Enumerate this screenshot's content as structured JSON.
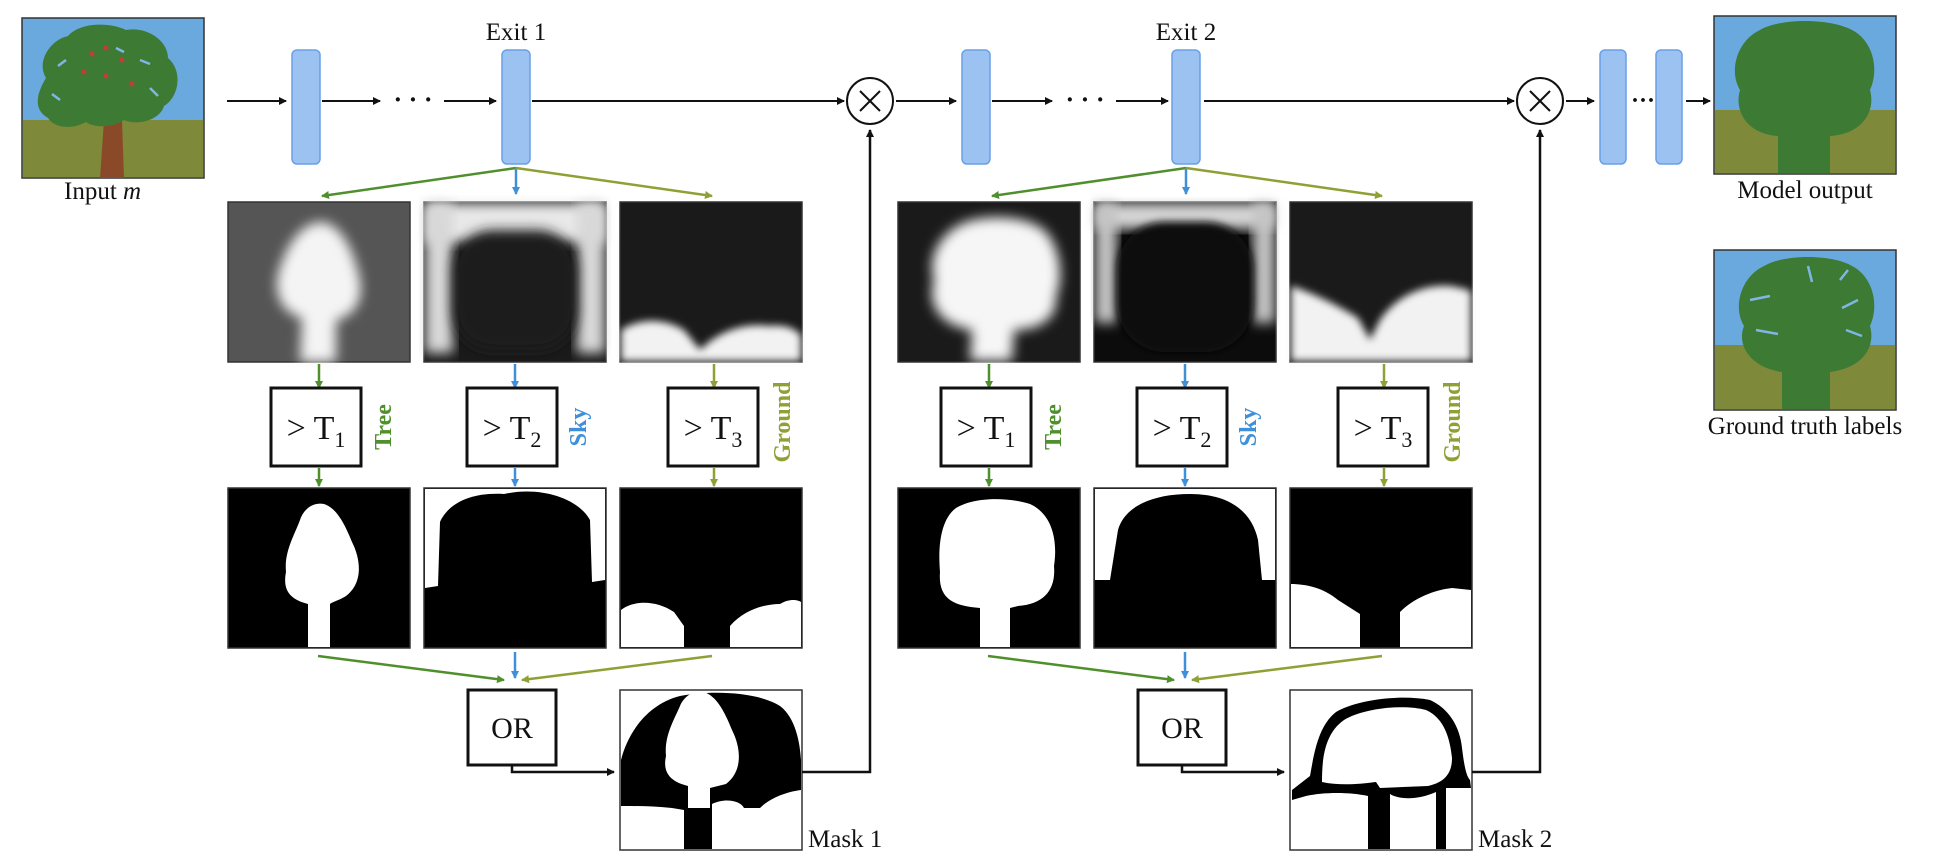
{
  "colors": {
    "tree": "#4f8f2c",
    "sky": "#3f90d8",
    "ground": "#8fa035",
    "block_fill": "#9cc2f2",
    "block_stroke": "#6aa0e6",
    "trunk": "#8a4a2a",
    "sky_bg": "#6aa9dd",
    "ground_bg": "#7e8a3a",
    "canopy": "#3d7a33"
  },
  "labels": {
    "input": "Input",
    "input_var": "m",
    "exit1": "Exit 1",
    "exit2": "Exit 2",
    "model_output": "Model output",
    "ground_truth": "Ground truth labels",
    "mask1": "Mask 1",
    "mask2": "Mask 2",
    "or": "OR",
    "multiply": "⊗",
    "ellipsis": "· · ·",
    "ellipsis_short": "···"
  },
  "classes": [
    {
      "name": "Tree",
      "symbol": "> T",
      "sub": "1",
      "color_key": "tree"
    },
    {
      "name": "Sky",
      "symbol": "> T",
      "sub": "2",
      "color_key": "sky"
    },
    {
      "name": "Ground",
      "symbol": "> T",
      "sub": "3",
      "color_key": "ground"
    }
  ],
  "exits": [
    {
      "id": "exit1",
      "mask_label_key": "mask1"
    },
    {
      "id": "exit2",
      "mask_label_key": "mask2"
    }
  ]
}
